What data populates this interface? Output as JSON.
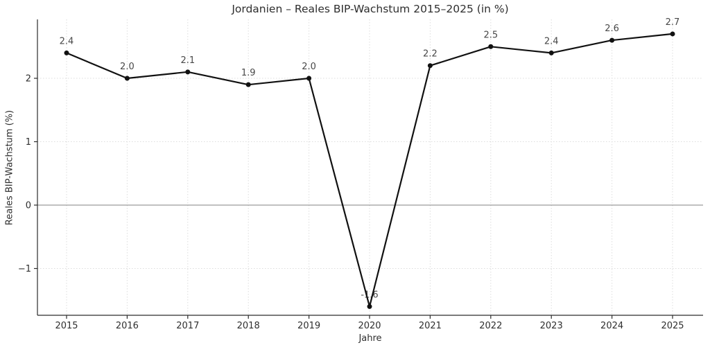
{
  "chart_data": {
    "type": "line",
    "title": "Jordanien – Reales BIP-Wachstum 2015–2025 (in %)",
    "xlabel": "Jahre",
    "ylabel": "Reales BIP-Wachstum (%)",
    "categories": [
      "2015",
      "2016",
      "2017",
      "2018",
      "2019",
      "2020",
      "2021",
      "2022",
      "2023",
      "2024",
      "2025"
    ],
    "values": [
      2.4,
      2.0,
      2.1,
      1.9,
      2.0,
      -1.6,
      2.2,
      2.5,
      2.4,
      2.6,
      2.7
    ],
    "point_labels": [
      "2.4",
      "2.0",
      "2.1",
      "1.9",
      "2.0",
      "-1.6",
      "2.2",
      "2.5",
      "2.4",
      "2.6",
      "2.7"
    ],
    "y_ticks": [
      {
        "value": -1,
        "label": "−1"
      },
      {
        "value": 0,
        "label": "0"
      },
      {
        "value": 1,
        "label": "1"
      },
      {
        "value": 2,
        "label": "2"
      }
    ],
    "ylim": [
      -1.74,
      2.91
    ],
    "grid": true,
    "zero_line": true,
    "legend_position": "none",
    "colors": {
      "line": "#111111",
      "marker": "#111111",
      "grid": "#dcdcdc",
      "zero_line": "#808080",
      "spine": "#2b2b2b",
      "tick_label": "#2e2e2e",
      "point_label": "#474747"
    }
  }
}
